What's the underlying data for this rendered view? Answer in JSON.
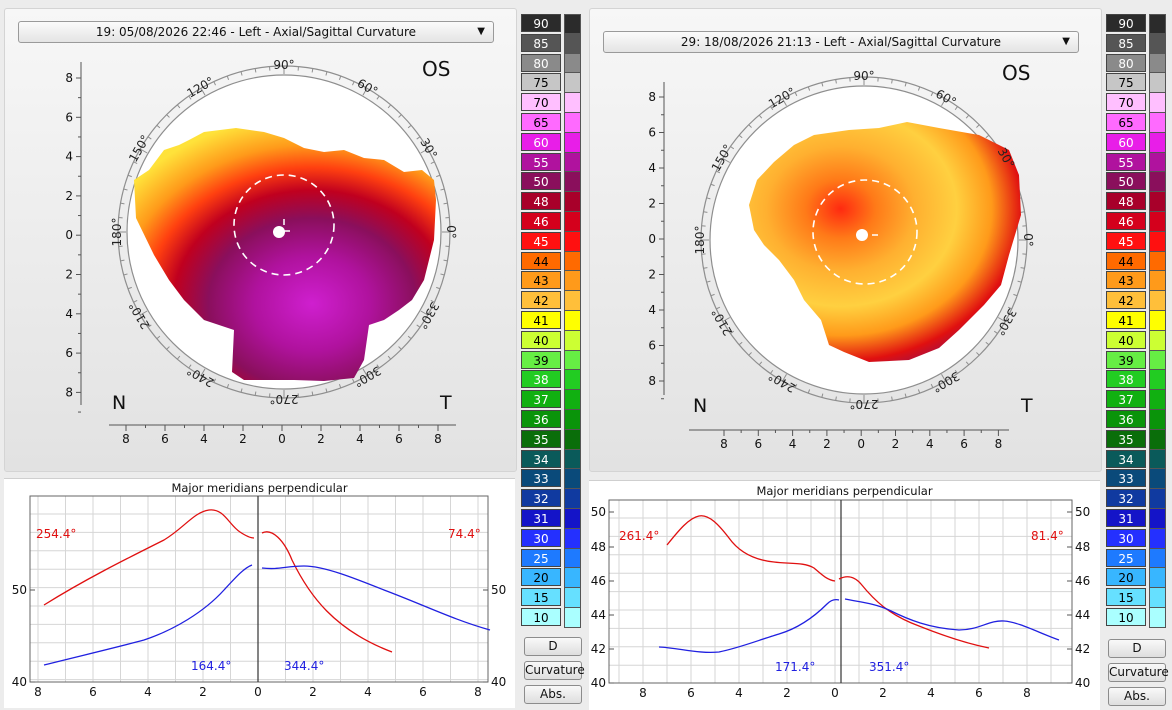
{
  "left_panel": {
    "exam_title": "19: 05/08/2026 22:46 - Left - Axial/Sagittal Curvature",
    "eye_label": "OS",
    "nasal_label": "N",
    "temporal_label": "T",
    "angle_labels": [
      "90°",
      "60°",
      "30°",
      "0°",
      "330°",
      "300°",
      "270°",
      "240°",
      "210°",
      "180°",
      "150°",
      "120°"
    ],
    "map_y_ticks": [
      "8",
      "6",
      "4",
      "2",
      "0",
      "2",
      "4",
      "6",
      "8"
    ],
    "map_x_ticks": [
      "8",
      "6",
      "4",
      "2",
      "0",
      "2",
      "4",
      "6",
      "8"
    ],
    "graph_title": "Major meridians perpendicular",
    "graph_labels": {
      "red_left": "254.4°",
      "red_right": "74.4°",
      "blue_left": "164.4°",
      "blue_right": "344.4°"
    },
    "graph_y_ticks": [
      "50",
      "40"
    ],
    "graph_x_ticks": [
      "8",
      "6",
      "4",
      "2",
      "0",
      "2",
      "4",
      "6",
      "8"
    ]
  },
  "right_panel": {
    "exam_title": "29: 18/08/2026 21:13 - Left - Axial/Sagittal Curvature",
    "eye_label": "OS",
    "nasal_label": "N",
    "temporal_label": "T",
    "angle_labels": [
      "90°",
      "60°",
      "30°",
      "0°",
      "330°",
      "300°",
      "270°",
      "240°",
      "210°",
      "180°",
      "150°",
      "120°"
    ],
    "map_y_ticks": [
      "8",
      "6",
      "4",
      "2",
      "0",
      "2",
      "4",
      "6",
      "8"
    ],
    "map_x_ticks": [
      "8",
      "6",
      "4",
      "2",
      "0",
      "2",
      "4",
      "6",
      "8"
    ],
    "graph_title": "Major meridians perpendicular",
    "graph_labels": {
      "red_left": "261.4°",
      "red_right": "81.4°",
      "blue_left": "171.4°",
      "blue_right": "351.4°"
    },
    "graph_y_ticks": [
      "50",
      "48",
      "46",
      "44",
      "42",
      "40"
    ],
    "graph_x_ticks": [
      "8",
      "6",
      "4",
      "2",
      "0",
      "2",
      "4",
      "6",
      "8"
    ]
  },
  "color_scale": [
    {
      "label": "90",
      "color": "#2b2b2b",
      "text": "#ffffff"
    },
    {
      "label": "85",
      "color": "#555555",
      "text": "#ffffff"
    },
    {
      "label": "80",
      "color": "#8a8a8a",
      "text": "#ffffff"
    },
    {
      "label": "75",
      "color": "#c6c6c6",
      "text": "#000000"
    },
    {
      "label": "70",
      "color": "#ffbfff",
      "text": "#000000"
    },
    {
      "label": "65",
      "color": "#ff6aff",
      "text": "#000000"
    },
    {
      "label": "60",
      "color": "#e81ee8",
      "text": "#ffffff"
    },
    {
      "label": "55",
      "color": "#b0129e",
      "text": "#ffffff"
    },
    {
      "label": "50",
      "color": "#8a0f5c",
      "text": "#ffffff"
    },
    {
      "label": "48",
      "color": "#a8002a",
      "text": "#ffffff"
    },
    {
      "label": "46",
      "color": "#d4001c",
      "text": "#ffffff"
    },
    {
      "label": "45",
      "color": "#ff1010",
      "text": "#ffffff"
    },
    {
      "label": "44",
      "color": "#ff6a00",
      "text": "#000000"
    },
    {
      "label": "43",
      "color": "#ff9a1a",
      "text": "#000000"
    },
    {
      "label": "42",
      "color": "#ffbf3a",
      "text": "#000000"
    },
    {
      "label": "41",
      "color": "#ffff00",
      "text": "#000000"
    },
    {
      "label": "40",
      "color": "#ccff33",
      "text": "#000000"
    },
    {
      "label": "39",
      "color": "#66ee44",
      "text": "#000000"
    },
    {
      "label": "38",
      "color": "#22cc22",
      "text": "#ffffff"
    },
    {
      "label": "37",
      "color": "#11b011",
      "text": "#ffffff"
    },
    {
      "label": "36",
      "color": "#0a940a",
      "text": "#ffffff"
    },
    {
      "label": "35",
      "color": "#0a6e0a",
      "text": "#ffffff"
    },
    {
      "label": "34",
      "color": "#0a5a5a",
      "text": "#ffffff"
    },
    {
      "label": "33",
      "color": "#0a4a7a",
      "text": "#ffffff"
    },
    {
      "label": "32",
      "color": "#103aa0",
      "text": "#ffffff"
    },
    {
      "label": "31",
      "color": "#1414c8",
      "text": "#ffffff"
    },
    {
      "label": "30",
      "color": "#2430ff",
      "text": "#ffffff"
    },
    {
      "label": "25",
      "color": "#1e7aff",
      "text": "#ffffff"
    },
    {
      "label": "20",
      "color": "#38b6ff",
      "text": "#000000"
    },
    {
      "label": "15",
      "color": "#66e0ff",
      "text": "#000000"
    },
    {
      "label": "10",
      "color": "#aaffff",
      "text": "#000000"
    }
  ],
  "buttons": {
    "d": "D",
    "curvature": "Curvature",
    "abs": "Abs."
  }
}
